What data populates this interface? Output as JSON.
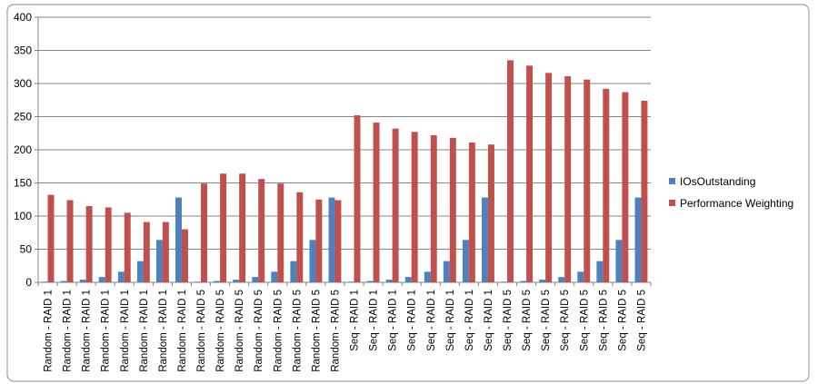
{
  "chart_data": {
    "type": "bar",
    "categories": [
      "Random - RAID 1",
      "Random - RAID 1",
      "Random - RAID 1",
      "Random - RAID 1",
      "Random - RAID 1",
      "Random - RAID 1",
      "Random - RAID 1",
      "Random - RAID 1",
      "Random - RAID 5",
      "Random - RAID 5",
      "Random - RAID 5",
      "Random - RAID 5",
      "Random - RAID 5",
      "Random - RAID 5",
      "Random - RAID 5",
      "Random - RAID 5",
      "Seq - RAID 1",
      "Seq - RAID 1",
      "Seq - RAID 1",
      "Seq - RAID 1",
      "Seq - RAID 1",
      "Seq - RAID 1",
      "Seq - RAID 1",
      "Seq - RAID 1",
      "Seq - RAID 5",
      "Seq - RAID 5",
      "Seq - RAID 5",
      "Seq - RAID 5",
      "Seq - RAID 5",
      "Seq - RAID 5",
      "Seq - RAID 5",
      "Seq - RAID 5"
    ],
    "series": [
      {
        "name": "IOsOutstanding",
        "color": "#4f81bd",
        "values": [
          1,
          2,
          4,
          8,
          16,
          32,
          64,
          128,
          1,
          2,
          4,
          8,
          16,
          32,
          64,
          128,
          1,
          2,
          4,
          8,
          16,
          32,
          64,
          128,
          1,
          2,
          4,
          8,
          16,
          32,
          64,
          128
        ]
      },
      {
        "name": "Performance Weighting",
        "color": "#c0504d",
        "values": [
          132,
          124,
          115,
          113,
          105,
          91,
          91,
          80,
          149,
          164,
          164,
          156,
          149,
          136,
          125,
          124,
          252,
          241,
          232,
          227,
          222,
          218,
          211,
          208,
          335,
          327,
          316,
          311,
          306,
          292,
          287,
          274
        ]
      }
    ],
    "ylim": [
      0,
      400
    ],
    "yticks": [
      0,
      50,
      100,
      150,
      200,
      250,
      300,
      350,
      400
    ],
    "grid": true,
    "legend": "right"
  }
}
